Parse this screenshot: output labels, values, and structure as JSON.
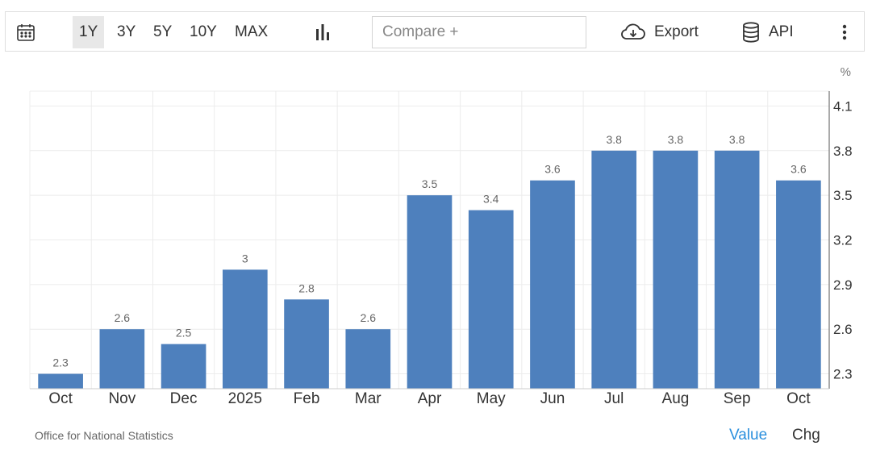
{
  "toolbar": {
    "ranges": [
      "1Y",
      "3Y",
      "5Y",
      "10Y",
      "MAX"
    ],
    "active_range": "1Y",
    "compare_placeholder": "Compare +",
    "export_label": "Export",
    "api_label": "API",
    "icons": {
      "calendar": "calendar-icon",
      "chart_type": "bar-chart-icon",
      "export": "cloud-download-icon",
      "api": "database-icon",
      "more": "more-vertical-icon"
    }
  },
  "chart_data": {
    "type": "bar",
    "categories": [
      "Oct",
      "Nov",
      "Dec",
      "2025",
      "Feb",
      "Mar",
      "Apr",
      "May",
      "Jun",
      "Jul",
      "Aug",
      "Sep",
      "Oct"
    ],
    "values": [
      2.3,
      2.6,
      2.5,
      3,
      2.8,
      2.6,
      3.5,
      3.4,
      3.6,
      3.8,
      3.8,
      3.8,
      3.6
    ],
    "value_labels": [
      "2.3",
      "2.6",
      "2.5",
      "3",
      "2.8",
      "2.6",
      "3.5",
      "3.4",
      "3.6",
      "3.8",
      "3.8",
      "3.8",
      "3.6"
    ],
    "unit": "%",
    "y_ticks": [
      2.3,
      2.6,
      2.9,
      3.2,
      3.5,
      3.8,
      4.1
    ],
    "y_tick_labels": [
      "2.3",
      "2.6",
      "2.9",
      "3.2",
      "3.5",
      "3.8",
      "4.1"
    ],
    "ylim": [
      2.2,
      4.2
    ],
    "y_axis_side": "right",
    "grid": true,
    "bar_color": "#4e80bd",
    "title": "",
    "xlabel": "",
    "ylabel": ""
  },
  "footer": {
    "source": "Office for National Statistics",
    "tabs": [
      "Value",
      "Chg"
    ],
    "active_tab": "Value",
    "active_color": "#2a8fdd"
  }
}
